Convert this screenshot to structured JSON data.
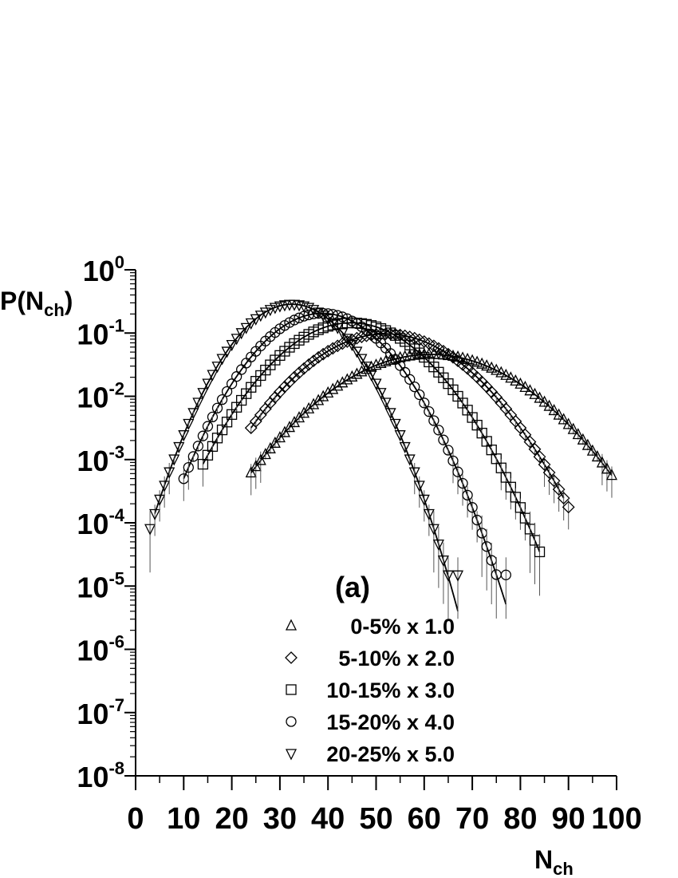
{
  "chart_data": {
    "type": "scatter",
    "ylabel": "P(N_ch)",
    "ylabel_main": "P(N",
    "ylabel_sub": "ch",
    "ylabel_close": ")",
    "xlabel_main": "N",
    "xlabel_sub": "ch",
    "panel_label": "(a)",
    "xlim": [
      0,
      100
    ],
    "ylim_exponent": [
      -8,
      0
    ],
    "y_scale": "log",
    "x_ticks": [
      "0",
      "10",
      "20",
      "30",
      "40",
      "50",
      "60",
      "70",
      "80",
      "90",
      "100"
    ],
    "y_ticks": [
      {
        "base": "10",
        "exp": "0"
      },
      {
        "base": "10",
        "exp": "-1"
      },
      {
        "base": "10",
        "exp": "-2"
      },
      {
        "base": "10",
        "exp": "-3"
      },
      {
        "base": "10",
        "exp": "-4"
      },
      {
        "base": "10",
        "exp": "-5"
      },
      {
        "base": "10",
        "exp": "-6"
      },
      {
        "base": "10",
        "exp": "-7"
      },
      {
        "base": "10",
        "exp": "-8"
      }
    ],
    "legend_placement": "bottom-center",
    "grid": false,
    "series": [
      {
        "name": "0-5% x 1.0",
        "marker": "triangle-up",
        "mean": 61.3,
        "sigma": 12.7,
        "peak": 0.046,
        "x_start": 24,
        "x_end": 98,
        "curve_from": 24,
        "curve_to": 99,
        "data_from": 24,
        "data_to": 99
      },
      {
        "name": "5-10% x 2.0",
        "marker": "diamond",
        "mean": 52.0,
        "sigma": 10.7,
        "peak": 0.097,
        "x_start": 24,
        "x_end": 89,
        "curve_from": 24,
        "curve_to": 89,
        "data_from": 24,
        "data_to": 90
      },
      {
        "name": "10-15% x 3.0",
        "marker": "square",
        "mean": 44.8,
        "sigma": 9.6,
        "peak": 0.145,
        "x_start": 14,
        "x_end": 84,
        "curve_from": 14,
        "curve_to": 84,
        "data_from": 14,
        "data_to": 84
      },
      {
        "name": "15-20% x 4.0",
        "marker": "circle",
        "mean": 38.8,
        "sigma": 8.3,
        "peak": 0.205,
        "x_start": 10,
        "x_end": 77,
        "curve_from": 10,
        "curve_to": 77,
        "data_from": 10,
        "data_to": 77
      },
      {
        "name": "20-25% x 5.0",
        "marker": "triangle-down",
        "mean": 32.5,
        "sigma": 7.3,
        "peak": 0.285,
        "x_start": 3,
        "x_end": 67,
        "curve_from": 4,
        "curve_to": 67,
        "data_from": 3,
        "data_to": 67
      }
    ]
  }
}
